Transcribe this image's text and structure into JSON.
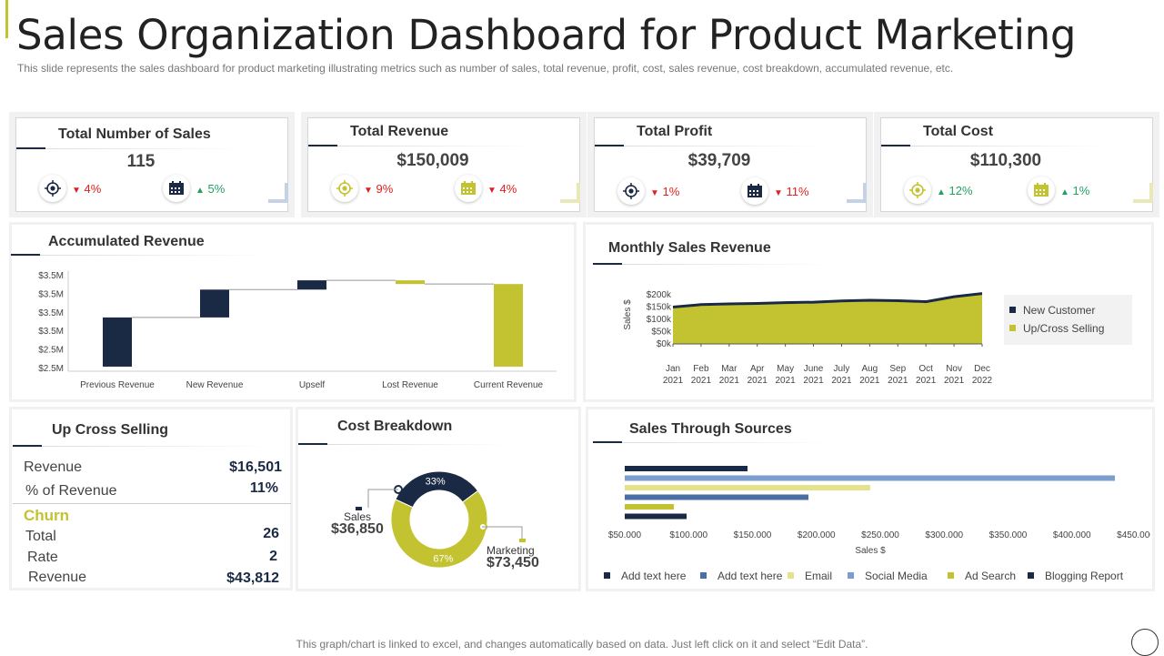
{
  "header": {
    "title": "Sales Organization Dashboard for Product Marketing",
    "subtitle": "This slide represents the sales dashboard for product marketing illustrating metrics such as number of sales, total revenue, profit, cost, sales revenue, cost breakdown, accumulated revenue, etc."
  },
  "kpis": [
    {
      "title": "Total Number of Sales",
      "value": "115",
      "icon1": "target-icon",
      "delta1": "4%",
      "dir1": "down",
      "icon2": "calendar-icon",
      "delta2": "5%",
      "dir2": "up"
    },
    {
      "title": "Total Revenue",
      "value": "$150,009",
      "icon1": "target-icon",
      "delta1": "9%",
      "dir1": "down",
      "icon2": "calendar-icon",
      "delta2": "4%",
      "dir2": "down"
    },
    {
      "title": "Total Profit",
      "value": "$39,709",
      "icon1": "target-icon",
      "delta1": "1%",
      "dir1": "down",
      "icon2": "calendar-icon",
      "delta2": "11%",
      "dir2": "down"
    },
    {
      "title": "Total Cost",
      "value": "$110,300",
      "icon1": "target-icon",
      "delta1": "12%",
      "dir1": "up",
      "icon2": "calendar-icon",
      "delta2": "1%",
      "dir2": "up"
    }
  ],
  "colors": {
    "navy": "#1a2a44",
    "olive": "#c3c231",
    "blue": "#7b9ecf",
    "pale_yellow": "#e5e28c",
    "olive_light": "#d9d9a0"
  },
  "accumulated": {
    "title": "Accumulated Revenue",
    "chart_data": {
      "type": "bar",
      "categories": [
        "Previous Revenue",
        "New Revenue",
        "Upself",
        "Lost Revenue",
        "Current Revenue"
      ],
      "y_tick_labels": [
        "$3.5M",
        "$3.5M",
        "$3.5M",
        "$3.5M",
        "$2.5M",
        "$2.5M"
      ],
      "bars": [
        {
          "bottom": 0.02,
          "top": 0.55,
          "color": "#1a2a44"
        },
        {
          "bottom": 0.55,
          "top": 0.85,
          "color": "#1a2a44"
        },
        {
          "bottom": 0.85,
          "top": 0.95,
          "color": "#1a2a44"
        },
        {
          "bottom": 0.91,
          "top": 0.95,
          "color": "#c3c231"
        },
        {
          "bottom": 0.02,
          "top": 0.91,
          "color": "#c3c231"
        }
      ]
    }
  },
  "monthly": {
    "title": "Monthly Sales Revenue",
    "chart_data": {
      "type": "area",
      "ylabel": "Sales $",
      "y_ticks": [
        "$0k",
        "$50k",
        "$100k",
        "$150k",
        "$200k"
      ],
      "ylim": [
        0,
        200000
      ],
      "months": [
        "Jan",
        "Feb",
        "Mar",
        "Apr",
        "May",
        "June",
        "July",
        "Aug",
        "Sep",
        "Oct",
        "Nov",
        "Dec"
      ],
      "years": [
        "2021",
        "2021",
        "2021",
        "2021",
        "2021",
        "2021",
        "2021",
        "2021",
        "2021",
        "2021",
        "2021",
        "2022"
      ],
      "series": [
        {
          "name": "New Customer",
          "values": [
            150000,
            160000,
            163000,
            165000,
            168000,
            170000,
            175000,
            178000,
            176000,
            172000,
            192000,
            205000
          ]
        },
        {
          "name": "Up/Cross Selling",
          "values": [
            145000,
            155000,
            158000,
            160000,
            163000,
            165000,
            170000,
            173000,
            171000,
            167000,
            187000,
            200000
          ]
        }
      ]
    }
  },
  "upcross": {
    "title": "Up Cross Selling",
    "revenue_label": "Revenue",
    "revenue_value": "$16,501",
    "pct_label": "% of Revenue",
    "pct_value": "11%",
    "churn_label": "Churn",
    "total_label": "Total",
    "total_value": "26",
    "rate_label": "Rate",
    "rate_value": "2",
    "churn_revenue_label": "Revenue",
    "churn_revenue_value": "$43,812"
  },
  "cost": {
    "title": "Cost Breakdown",
    "chart_data": {
      "type": "pie",
      "slices": [
        {
          "name": "Sales",
          "value": 33,
          "label": "33%",
          "amount": "$36,850",
          "color": "#1a2a44"
        },
        {
          "name": "Marketing",
          "value": 67,
          "label": "67%",
          "amount": "$73,450",
          "color": "#c3c231"
        }
      ]
    }
  },
  "sources": {
    "title": "Sales Through Sources",
    "chart_data": {
      "type": "bar",
      "orientation": "horizontal",
      "xlabel": "Sales $",
      "x_ticks": [
        "$50.000",
        "$100.000",
        "$150.000",
        "$200.000",
        "$250.000",
        "$300.000",
        "$350.000",
        "$400.000",
        "$450.000"
      ],
      "xlim": [
        50000,
        450000
      ],
      "series": [
        {
          "name": "Add text here",
          "value": 150000,
          "color": "#1a2a44"
        },
        {
          "name": "Add text here",
          "value": 450000,
          "color": "#7b9ecf"
        },
        {
          "name": "Email",
          "value": 250000,
          "color": "#e5e28c"
        },
        {
          "name": "Social Media",
          "value": 200000,
          "color": "#4a6fa5"
        },
        {
          "name": "Ad Search",
          "value": 90000,
          "color": "#c3c231"
        },
        {
          "name": "Blogging Report",
          "value": 100000,
          "color": "#1a2a44"
        }
      ]
    }
  },
  "footer": {
    "note": "This graph/chart is linked to excel,  and changes automatically based on data. Just left click on it and select “Edit Data”."
  }
}
